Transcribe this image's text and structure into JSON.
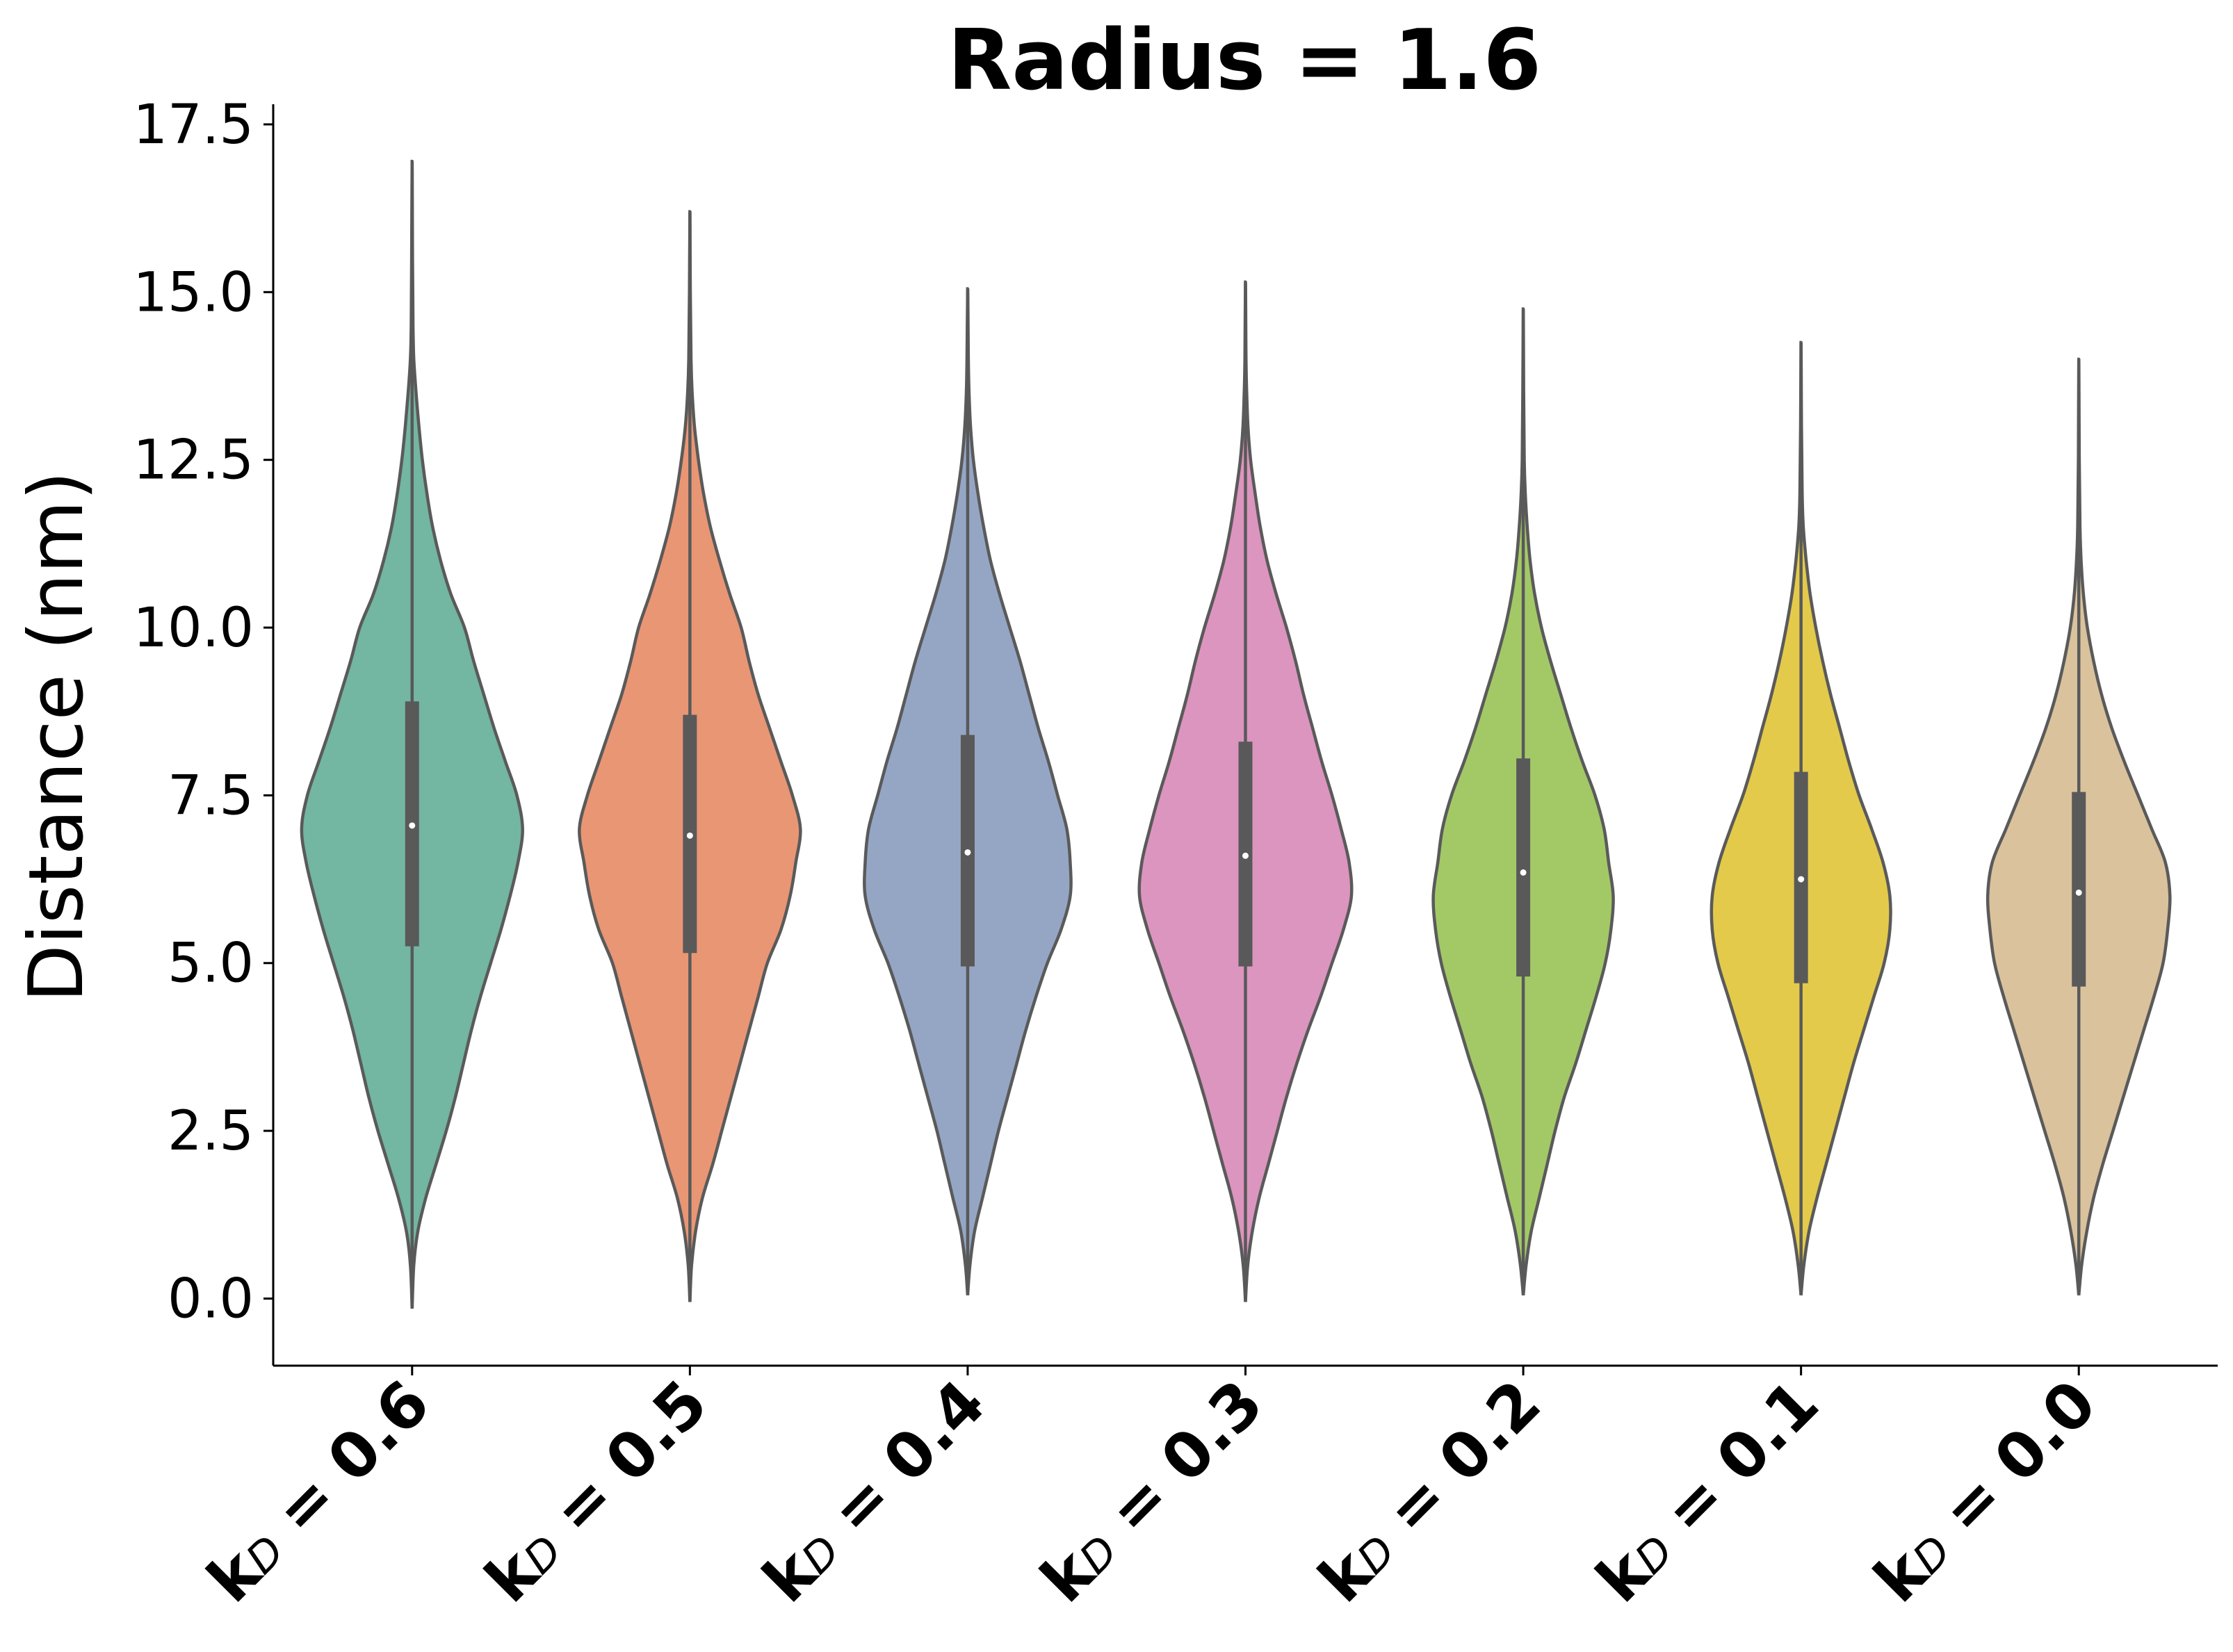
{
  "chart_data": {
    "type": "violin",
    "title": "Radius = 1.6",
    "ylabel": "Distance (nm)",
    "xlabel": "",
    "ylim": [
      -1.0,
      17.8
    ],
    "yticks": [
      0.0,
      2.5,
      5.0,
      7.5,
      10.0,
      12.5,
      15.0,
      17.5
    ],
    "ytick_labels": [
      "0.0",
      "2.5",
      "5.0",
      "7.5",
      "10.0",
      "12.5",
      "15.0",
      "17.5"
    ],
    "grid": false,
    "legend": "none",
    "box_color": "#595959",
    "outline_color": "#5a5a5a",
    "categories": [
      {
        "label_main": "k",
        "label_sub": "D",
        "label_rest": " = 0.6",
        "color": "#73b6a2",
        "min": -0.15,
        "q1": 5.25,
        "median": 7.05,
        "q3": 8.9,
        "max": 16.95
      },
      {
        "label_main": "k",
        "label_sub": "D",
        "label_rest": " = 0.5",
        "color": "#e99675",
        "min": -0.05,
        "q1": 5.15,
        "median": 6.9,
        "q3": 8.7,
        "max": 16.2
      },
      {
        "label_main": "k",
        "label_sub": "D",
        "label_rest": " = 0.4",
        "color": "#95a6c5",
        "min": 0.05,
        "q1": 4.95,
        "median": 6.65,
        "q3": 8.4,
        "max": 15.05
      },
      {
        "label_main": "k",
        "label_sub": "D",
        "label_rest": " = 0.3",
        "color": "#dc95bf",
        "min": -0.05,
        "q1": 4.95,
        "median": 6.6,
        "q3": 8.3,
        "max": 15.15
      },
      {
        "label_main": "k",
        "label_sub": "D",
        "label_rest": " = 0.2",
        "color": "#a3c967",
        "min": 0.05,
        "q1": 4.8,
        "median": 6.35,
        "q3": 8.05,
        "max": 14.75
      },
      {
        "label_main": "k",
        "label_sub": "D",
        "label_rest": " = 0.1",
        "color": "#e3ca4b",
        "min": 0.05,
        "q1": 4.7,
        "median": 6.25,
        "q3": 7.85,
        "max": 14.25
      },
      {
        "label_main": "k",
        "label_sub": "D",
        "label_rest": " = 0.0",
        "color": "#dac29d",
        "min": 0.05,
        "q1": 4.65,
        "median": 6.05,
        "q3": 7.55,
        "max": 14.0
      }
    ],
    "density_profiles": [
      [
        [
          -0.15,
          0
        ],
        [
          0.5,
          0.015
        ],
        [
          1.0,
          0.05
        ],
        [
          1.5,
          0.12
        ],
        [
          2.0,
          0.21
        ],
        [
          2.5,
          0.3
        ],
        [
          3.0,
          0.38
        ],
        [
          3.5,
          0.45
        ],
        [
          4.0,
          0.52
        ],
        [
          4.5,
          0.6
        ],
        [
          5.0,
          0.69
        ],
        [
          5.5,
          0.78
        ],
        [
          6.0,
          0.86
        ],
        [
          6.5,
          0.93
        ],
        [
          7.0,
          0.97
        ],
        [
          7.5,
          0.92
        ],
        [
          8.0,
          0.82
        ],
        [
          8.5,
          0.72
        ],
        [
          9.0,
          0.63
        ],
        [
          9.5,
          0.54
        ],
        [
          10.0,
          0.46
        ],
        [
          10.5,
          0.34
        ],
        [
          11.0,
          0.25
        ],
        [
          11.5,
          0.18
        ],
        [
          12.0,
          0.13
        ],
        [
          12.5,
          0.09
        ],
        [
          13.0,
          0.06
        ],
        [
          13.5,
          0.035
        ],
        [
          14.0,
          0.015
        ],
        [
          14.5,
          0.008
        ],
        [
          15.5,
          0.004
        ],
        [
          16.95,
          0
        ]
      ],
      [
        [
          -0.05,
          0
        ],
        [
          0.5,
          0.015
        ],
        [
          1.0,
          0.05
        ],
        [
          1.5,
          0.11
        ],
        [
          2.0,
          0.2
        ],
        [
          2.5,
          0.28
        ],
        [
          3.0,
          0.36
        ],
        [
          3.5,
          0.44
        ],
        [
          4.0,
          0.52
        ],
        [
          4.5,
          0.6
        ],
        [
          5.0,
          0.68
        ],
        [
          5.5,
          0.8
        ],
        [
          6.0,
          0.88
        ],
        [
          6.5,
          0.93
        ],
        [
          7.0,
          0.97
        ],
        [
          7.5,
          0.9
        ],
        [
          8.0,
          0.8
        ],
        [
          8.5,
          0.7
        ],
        [
          9.0,
          0.6
        ],
        [
          9.5,
          0.52
        ],
        [
          10.0,
          0.45
        ],
        [
          10.5,
          0.35
        ],
        [
          11.0,
          0.26
        ],
        [
          11.5,
          0.18
        ],
        [
          12.0,
          0.12
        ],
        [
          12.5,
          0.075
        ],
        [
          13.0,
          0.04
        ],
        [
          13.5,
          0.02
        ],
        [
          14.0,
          0.01
        ],
        [
          15.0,
          0.004
        ],
        [
          16.2,
          0
        ]
      ],
      [
        [
          0.05,
          0
        ],
        [
          0.5,
          0.02
        ],
        [
          1.0,
          0.06
        ],
        [
          1.5,
          0.13
        ],
        [
          2.0,
          0.2
        ],
        [
          2.5,
          0.27
        ],
        [
          3.0,
          0.35
        ],
        [
          3.5,
          0.43
        ],
        [
          4.0,
          0.51
        ],
        [
          4.5,
          0.6
        ],
        [
          5.0,
          0.7
        ],
        [
          5.5,
          0.82
        ],
        [
          6.0,
          0.9
        ],
        [
          6.5,
          0.9
        ],
        [
          7.0,
          0.87
        ],
        [
          7.5,
          0.79
        ],
        [
          8.0,
          0.71
        ],
        [
          8.5,
          0.62
        ],
        [
          9.0,
          0.54
        ],
        [
          9.5,
          0.46
        ],
        [
          10.0,
          0.37
        ],
        [
          10.5,
          0.28
        ],
        [
          11.0,
          0.2
        ],
        [
          11.5,
          0.14
        ],
        [
          12.0,
          0.09
        ],
        [
          12.5,
          0.05
        ],
        [
          13.0,
          0.025
        ],
        [
          13.5,
          0.012
        ],
        [
          14.0,
          0.006
        ],
        [
          15.05,
          0
        ]
      ],
      [
        [
          -0.05,
          0
        ],
        [
          0.5,
          0.02
        ],
        [
          1.0,
          0.06
        ],
        [
          1.5,
          0.12
        ],
        [
          2.0,
          0.2
        ],
        [
          2.5,
          0.28
        ],
        [
          3.0,
          0.36
        ],
        [
          3.5,
          0.45
        ],
        [
          4.0,
          0.55
        ],
        [
          4.5,
          0.66
        ],
        [
          5.0,
          0.76
        ],
        [
          5.5,
          0.86
        ],
        [
          6.0,
          0.93
        ],
        [
          6.5,
          0.91
        ],
        [
          7.0,
          0.84
        ],
        [
          7.5,
          0.76
        ],
        [
          8.0,
          0.67
        ],
        [
          8.5,
          0.59
        ],
        [
          9.0,
          0.51
        ],
        [
          9.5,
          0.44
        ],
        [
          10.0,
          0.36
        ],
        [
          10.5,
          0.27
        ],
        [
          11.0,
          0.19
        ],
        [
          11.5,
          0.13
        ],
        [
          12.0,
          0.085
        ],
        [
          12.5,
          0.045
        ],
        [
          13.0,
          0.022
        ],
        [
          13.5,
          0.011
        ],
        [
          14.0,
          0.005
        ],
        [
          15.15,
          0
        ]
      ],
      [
        [
          0.05,
          0
        ],
        [
          0.5,
          0.025
        ],
        [
          1.0,
          0.07
        ],
        [
          1.5,
          0.14
        ],
        [
          2.0,
          0.21
        ],
        [
          2.5,
          0.28
        ],
        [
          3.0,
          0.36
        ],
        [
          3.5,
          0.46
        ],
        [
          4.0,
          0.55
        ],
        [
          4.5,
          0.64
        ],
        [
          5.0,
          0.72
        ],
        [
          5.5,
          0.77
        ],
        [
          6.0,
          0.79
        ],
        [
          6.5,
          0.75
        ],
        [
          7.0,
          0.71
        ],
        [
          7.5,
          0.63
        ],
        [
          8.0,
          0.52
        ],
        [
          8.5,
          0.42
        ],
        [
          9.0,
          0.33
        ],
        [
          9.5,
          0.24
        ],
        [
          10.0,
          0.16
        ],
        [
          10.5,
          0.1
        ],
        [
          11.0,
          0.06
        ],
        [
          11.5,
          0.035
        ],
        [
          12.0,
          0.018
        ],
        [
          12.5,
          0.009
        ],
        [
          13.5,
          0.004
        ],
        [
          14.75,
          0
        ]
      ],
      [
        [
          0.05,
          0
        ],
        [
          0.5,
          0.025
        ],
        [
          1.0,
          0.07
        ],
        [
          1.5,
          0.14
        ],
        [
          2.0,
          0.22
        ],
        [
          2.5,
          0.3
        ],
        [
          3.0,
          0.38
        ],
        [
          3.5,
          0.46
        ],
        [
          4.0,
          0.55
        ],
        [
          4.5,
          0.64
        ],
        [
          5.0,
          0.73
        ],
        [
          5.5,
          0.78
        ],
        [
          6.0,
          0.78
        ],
        [
          6.5,
          0.72
        ],
        [
          7.0,
          0.62
        ],
        [
          7.5,
          0.51
        ],
        [
          8.0,
          0.42
        ],
        [
          8.5,
          0.34
        ],
        [
          9.0,
          0.26
        ],
        [
          9.5,
          0.19
        ],
        [
          10.0,
          0.13
        ],
        [
          10.5,
          0.08
        ],
        [
          11.0,
          0.045
        ],
        [
          11.5,
          0.02
        ],
        [
          12.0,
          0.01
        ],
        [
          13.0,
          0.004
        ],
        [
          14.25,
          0
        ]
      ],
      [
        [
          0.05,
          0
        ],
        [
          0.5,
          0.025
        ],
        [
          1.0,
          0.07
        ],
        [
          1.5,
          0.13
        ],
        [
          2.0,
          0.21
        ],
        [
          2.5,
          0.3
        ],
        [
          3.0,
          0.39
        ],
        [
          3.5,
          0.48
        ],
        [
          4.0,
          0.57
        ],
        [
          4.5,
          0.66
        ],
        [
          5.0,
          0.74
        ],
        [
          5.5,
          0.78
        ],
        [
          6.0,
          0.8
        ],
        [
          6.5,
          0.76
        ],
        [
          7.0,
          0.64
        ],
        [
          7.5,
          0.52
        ],
        [
          8.0,
          0.4
        ],
        [
          8.5,
          0.29
        ],
        [
          9.0,
          0.2
        ],
        [
          9.5,
          0.13
        ],
        [
          10.0,
          0.075
        ],
        [
          10.5,
          0.04
        ],
        [
          11.0,
          0.02
        ],
        [
          11.5,
          0.01
        ],
        [
          12.5,
          0.004
        ],
        [
          14.0,
          0
        ]
      ]
    ]
  }
}
